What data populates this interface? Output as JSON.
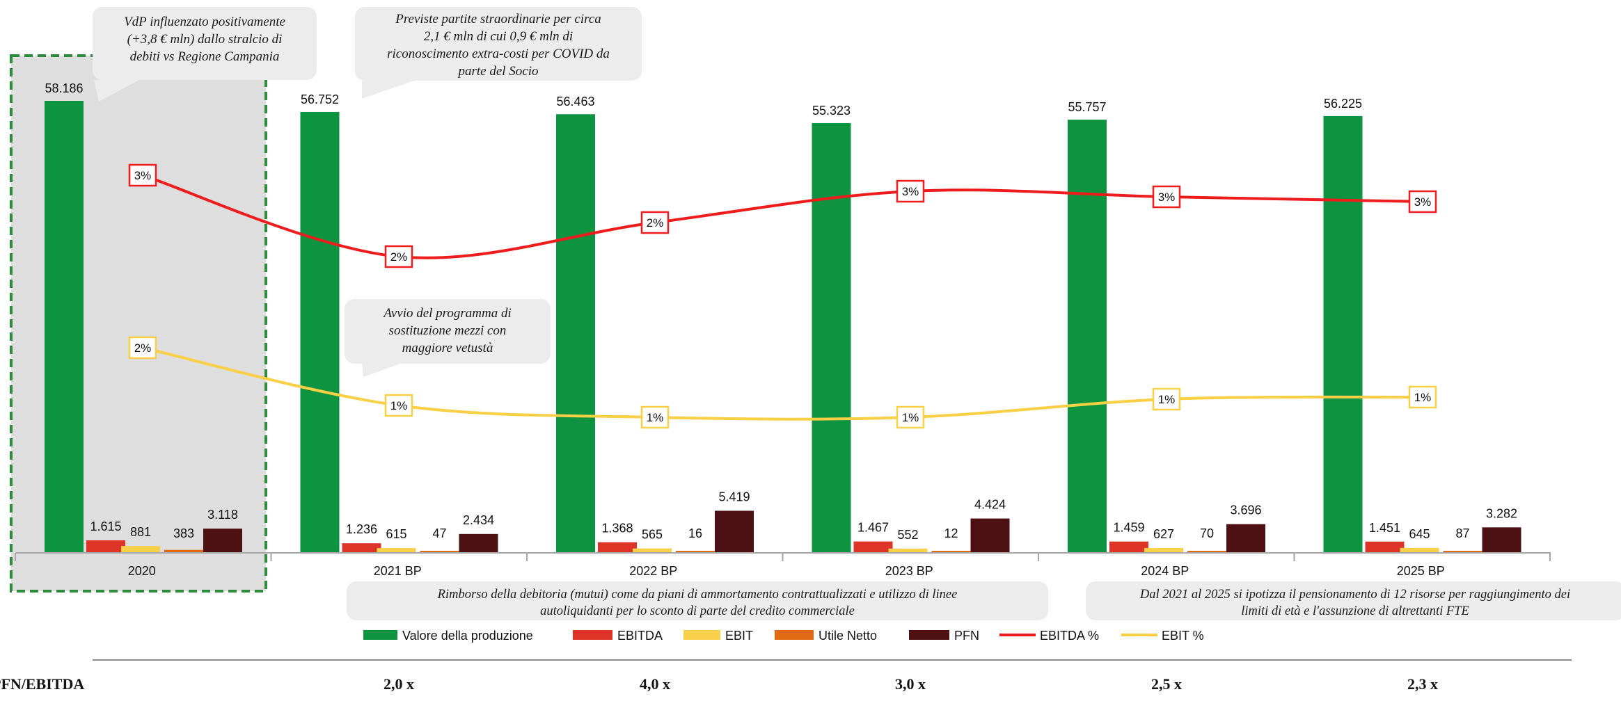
{
  "chart_data": {
    "type": "bar",
    "categories": [
      "2020",
      "2021 BP",
      "2022 BP",
      "2023 BP",
      "2024 BP",
      "2025 BP"
    ],
    "series": [
      {
        "name": "Valore della produzione",
        "kind": "bar",
        "color": "#0e9440",
        "values": [
          58186,
          56752,
          56463,
          55323,
          55757,
          56225
        ],
        "labels": [
          "58.186",
          "56.752",
          "56.463",
          "55.323",
          "55.757",
          "56.225"
        ]
      },
      {
        "name": "EBITDA",
        "kind": "bar",
        "color": "#de3327",
        "values": [
          1615,
          1236,
          1368,
          1467,
          1459,
          1451
        ],
        "labels": [
          "1.615",
          "1.236",
          "1.368",
          "1.467",
          "1.459",
          "1.451"
        ]
      },
      {
        "name": "EBIT",
        "kind": "bar",
        "color": "#f8d04a",
        "values": [
          881,
          615,
          565,
          552,
          627,
          645
        ],
        "labels": [
          "881",
          "615",
          "565",
          "552",
          "627",
          "645"
        ]
      },
      {
        "name": "Utile Netto",
        "kind": "bar",
        "color": "#e06a14",
        "values": [
          383,
          47,
          16,
          12,
          70,
          87
        ],
        "labels": [
          "383",
          "47",
          "16",
          "12",
          "70",
          "87"
        ]
      },
      {
        "name": "PFN",
        "kind": "bar",
        "color": "#4e1113",
        "values": [
          3118,
          2434,
          5419,
          4424,
          3696,
          3282
        ],
        "labels": [
          "3.118",
          "2.434",
          "5.419",
          "4.424",
          "3.696",
          "3.282"
        ]
      },
      {
        "name": "EBITDA %",
        "kind": "line",
        "color": "#ee1c1c",
        "values": [
          3,
          2,
          2,
          3,
          3,
          3
        ],
        "labels": [
          "3%",
          "2%",
          "2%",
          "3%",
          "3%",
          "3%"
        ]
      },
      {
        "name": "EBIT %",
        "kind": "line",
        "color": "#f9cf45",
        "values": [
          2,
          1,
          1,
          1,
          1,
          1
        ],
        "labels": [
          "2%",
          "1%",
          "1%",
          "1%",
          "1%",
          "1%"
        ]
      }
    ],
    "legend": {
      "position": "bottom"
    },
    "grid": false
  },
  "callouts": [
    {
      "lines": [
        "VdP influenzato positivamente",
        "(+3,8 € mln) dallo stralcio di",
        "debiti vs Regione Campania"
      ]
    },
    {
      "lines": [
        "Previste partite straordinarie per circa",
        "2,1 € mln di cui 0,9 € mln di",
        "riconoscimento extra-costi per COVID da",
        "parte del Socio"
      ]
    },
    {
      "lines": [
        "Avvio del programma di",
        "sostituzione mezzi con",
        "maggiore vetustà"
      ]
    },
    {
      "lines": [
        "Rimborso della debitoria (mutui) come da piani di ammortamento contrattualizzati e utilizzo di linee",
        "autoliquidanti per lo sconto di parte del credito commerciale"
      ]
    },
    {
      "lines": [
        "Dal 2021 al 2025 si ipotizza il pensionamento di 12 risorse per raggiungimento dei",
        "limiti di età e l'assunzione di altrettanti FTE"
      ]
    }
  ],
  "ratio_row": {
    "label": "PFN/EBITDA",
    "values": [
      "2,0 x",
      "4,0 x",
      "3,0 x",
      "2,5 x",
      "2,3 x"
    ]
  },
  "colors": {
    "highlight_fill": "#dedede",
    "highlight_border": "#2c8c3c",
    "callout_fill": "#ececec",
    "axis": "#a6a6a6"
  }
}
